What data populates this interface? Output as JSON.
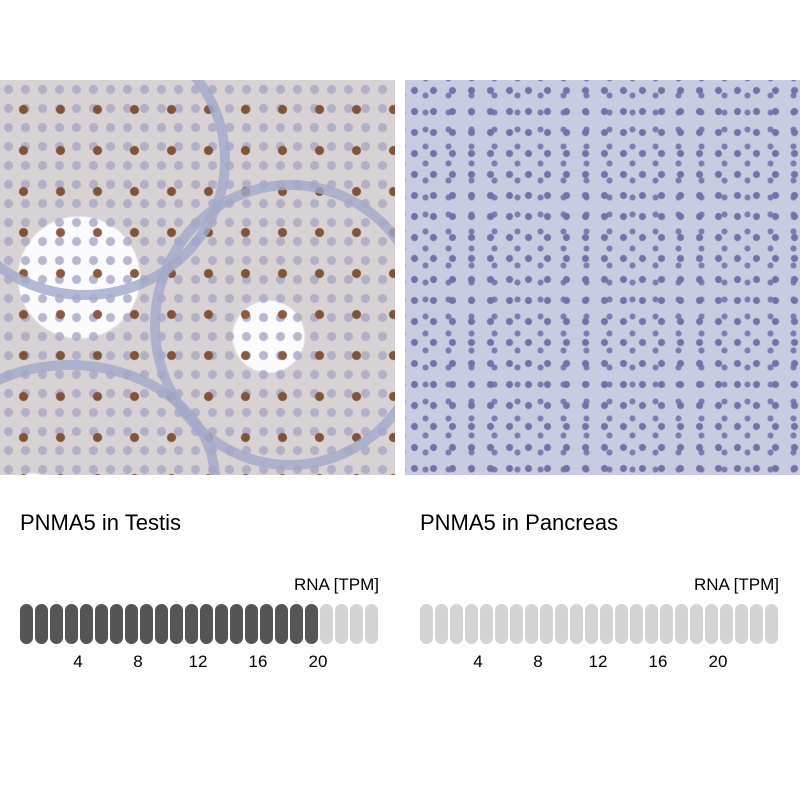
{
  "panels": [
    {
      "title": "PNMA5 in Testis",
      "unit_label": "RNA [TPM]",
      "tpm_value": 20,
      "bar_count": 24,
      "ticks": [
        "4",
        "8",
        "12",
        "16",
        "20"
      ],
      "filled_color": "#555555",
      "empty_color": "#d3d3d3",
      "image": "testis IHC tissue micrograph"
    },
    {
      "title": "PNMA5 in Pancreas",
      "unit_label": "RNA [TPM]",
      "tpm_value": 0,
      "bar_count": 24,
      "ticks": [
        "4",
        "8",
        "12",
        "16",
        "20"
      ],
      "filled_color": "#555555",
      "empty_color": "#d3d3d3",
      "image": "pancreas IHC tissue micrograph"
    }
  ]
}
